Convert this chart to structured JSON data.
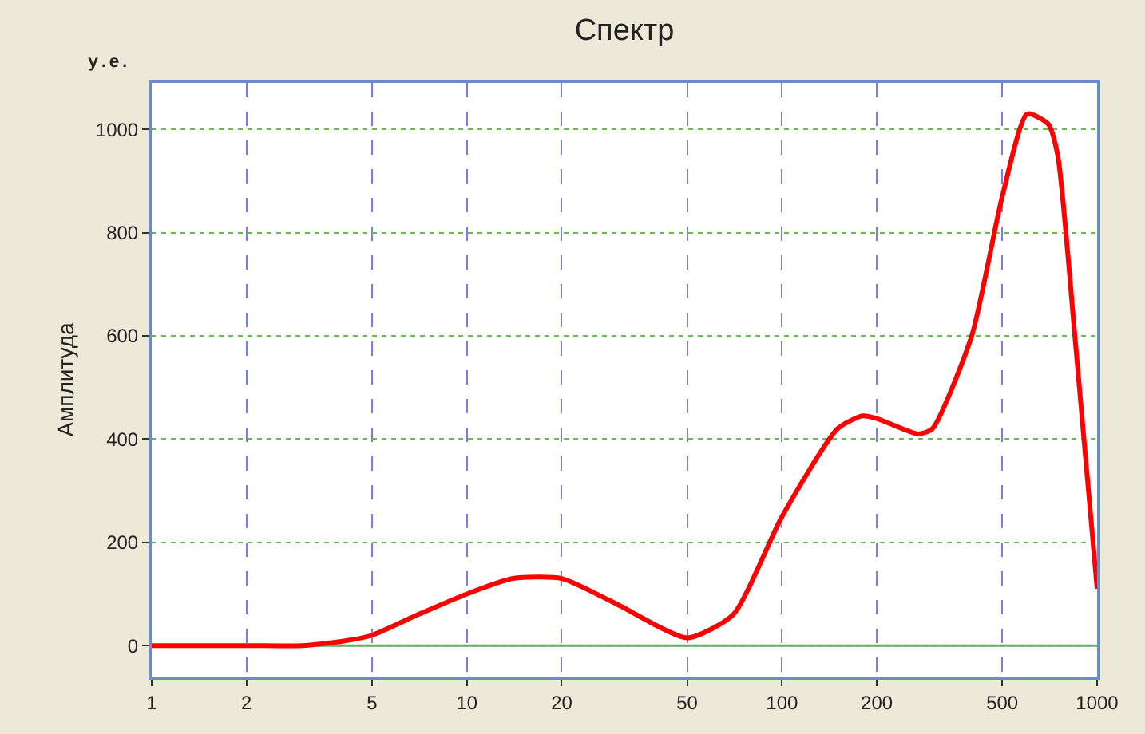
{
  "chart_data": {
    "type": "line",
    "title": "Спектр",
    "ylabel": "Амплитуда",
    "annotations": [
      "у.е."
    ],
    "log": "x",
    "grid": true,
    "marker": "none",
    "line_style": "solid",
    "xlim": [
      1,
      1000
    ],
    "xticks": [
      1,
      2,
      5,
      10,
      20,
      50,
      100,
      200,
      500,
      1000
    ],
    "ylim": [
      -60,
      1090
    ],
    "yticks": [
      0,
      200,
      400,
      600,
      800,
      1000
    ],
    "ref_lines": [
      {
        "axis": "y",
        "value": 0,
        "label": null,
        "color": "#4cb84c",
        "line_style": "solid"
      }
    ],
    "series": [
      {
        "color": "#ff0000",
        "x": [
          1,
          2,
          3,
          4,
          5,
          7,
          10,
          14,
          20,
          30,
          50,
          70,
          100,
          150,
          180,
          200,
          270,
          300,
          400,
          500,
          600,
          700,
          750,
          850,
          1000
        ],
        "values": [
          0,
          0,
          0,
          8,
          20,
          60,
          100,
          130,
          130,
          80,
          15,
          60,
          250,
          420,
          445,
          440,
          410,
          420,
          600,
          870,
          1030,
          1010,
          950,
          600,
          110
        ]
      }
    ]
  }
}
